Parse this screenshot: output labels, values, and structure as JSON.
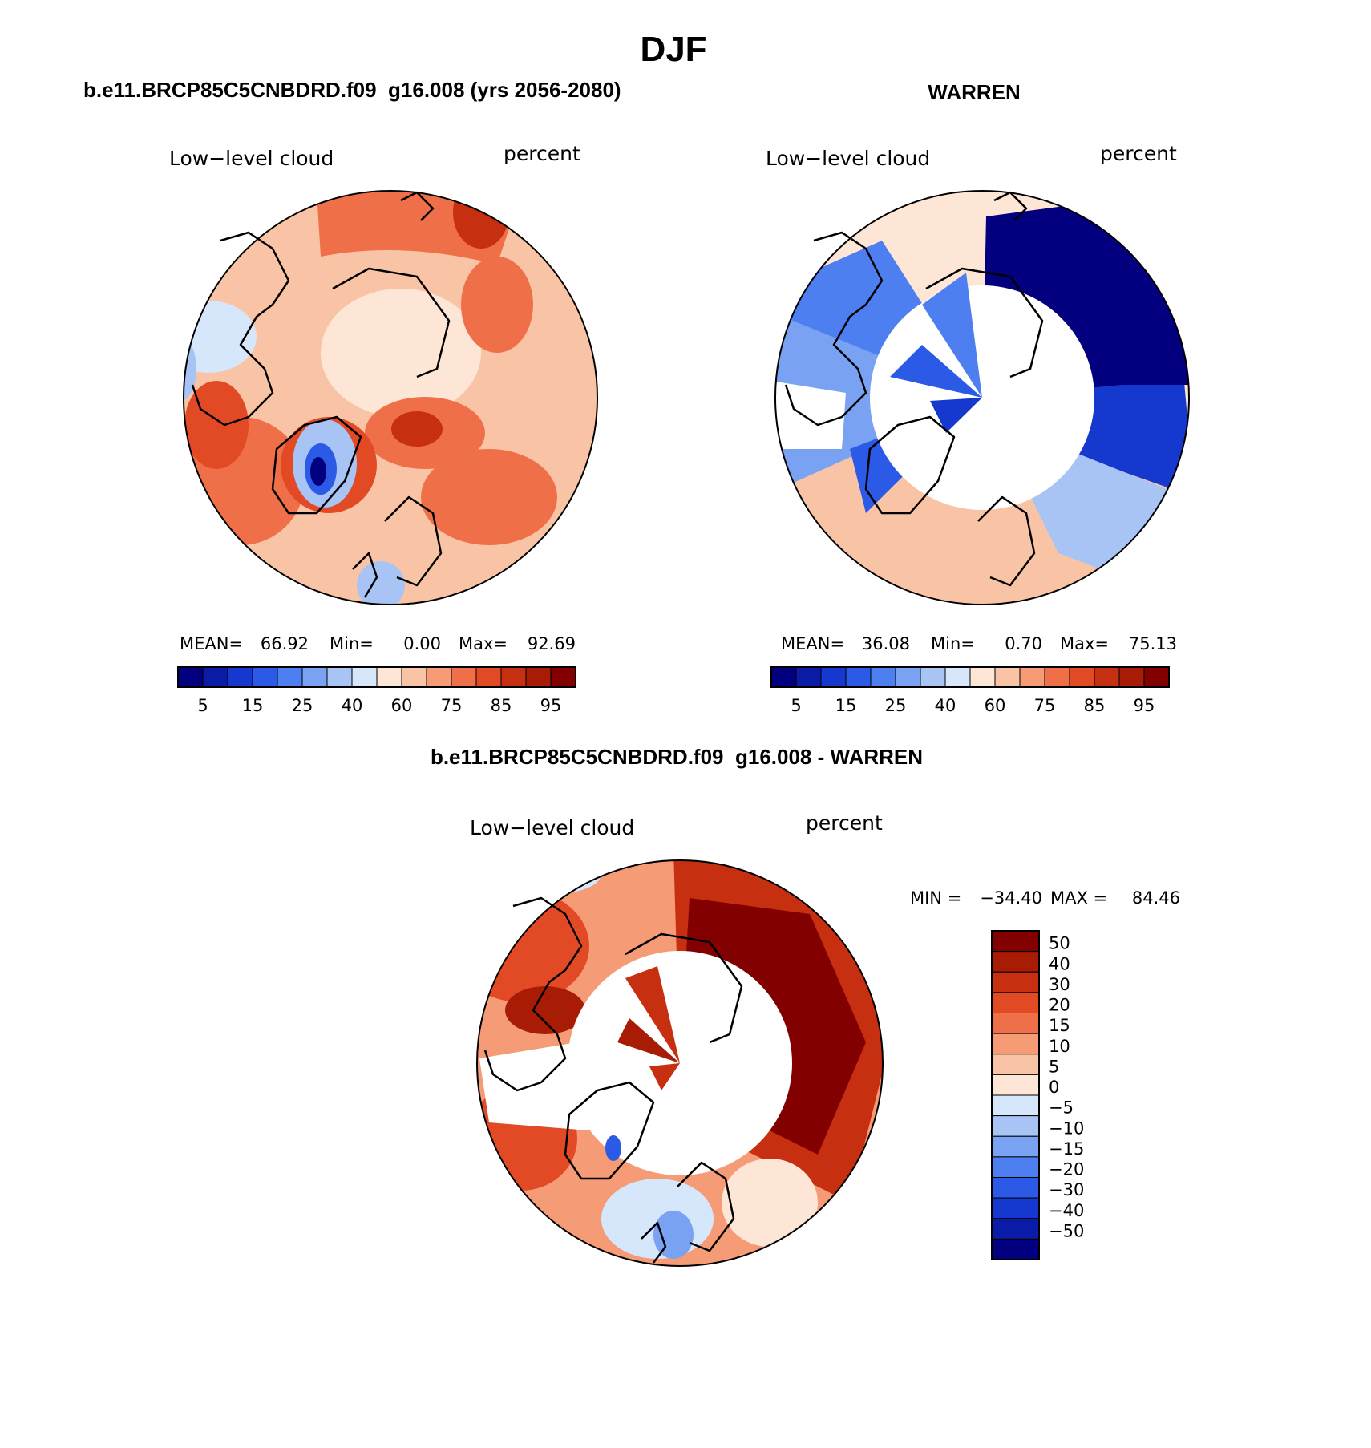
{
  "figure": {
    "season": "DJF",
    "left_title": "b.e11.BRCP85C5CNBDRD.f09_g16.008 (yrs 2056-2080)",
    "right_title": "WARREN",
    "diff_title": "b.e11.BRCP85C5CNBDRD.f09_g16.008 - WARREN"
  },
  "chart_data": [
    {
      "type": "heatmap",
      "projection": "north polar stereographic",
      "variable": "Low−level cloud",
      "units": "percent",
      "stats": {
        "mean_label": "MEAN=",
        "mean": "66.92",
        "min_label": "Min=",
        "min": "0.00",
        "max_label": "Max=",
        "max": "92.69"
      },
      "colorbar": {
        "orientation": "horizontal",
        "levels": [
          5,
          10,
          15,
          20,
          25,
          30,
          40,
          50,
          60,
          70,
          75,
          80,
          85,
          90,
          95
        ],
        "tick_labels": [
          "5",
          "15",
          "25",
          "40",
          "60",
          "75",
          "85",
          "95"
        ],
        "colors": [
          "#03007f",
          "#0a1ba8",
          "#1538cf",
          "#2a5ae6",
          "#4e7ff0",
          "#7aa2f3",
          "#a8c4f5",
          "#d6e7fb",
          "#fde6d6",
          "#f9c4a6",
          "#f59b75",
          "#ef7048",
          "#e24a25",
          "#c62f10",
          "#a81c05",
          "#820000"
        ]
      }
    },
    {
      "type": "heatmap",
      "projection": "north polar stereographic",
      "variable": "Low−level cloud",
      "units": "percent",
      "stats": {
        "mean_label": "MEAN=",
        "mean": "36.08",
        "min_label": "Min=",
        "min": "0.70",
        "max_label": "Max=",
        "max": "75.13"
      },
      "colorbar": {
        "orientation": "horizontal",
        "levels": [
          5,
          10,
          15,
          20,
          25,
          30,
          40,
          50,
          60,
          70,
          75,
          80,
          85,
          90,
          95
        ],
        "tick_labels": [
          "5",
          "15",
          "25",
          "40",
          "60",
          "75",
          "85",
          "95"
        ],
        "colors": [
          "#03007f",
          "#0a1ba8",
          "#1538cf",
          "#2a5ae6",
          "#4e7ff0",
          "#7aa2f3",
          "#a8c4f5",
          "#d6e7fb",
          "#fde6d6",
          "#f9c4a6",
          "#f59b75",
          "#ef7048",
          "#e24a25",
          "#c62f10",
          "#a81c05",
          "#820000"
        ]
      }
    },
    {
      "type": "heatmap",
      "projection": "north polar stereographic",
      "variable": "Low−level cloud",
      "units": "percent",
      "stats": {
        "min_label": "MIN =",
        "min": "−34.40",
        "max_label": "MAX =",
        "max": "84.46"
      },
      "colorbar": {
        "orientation": "vertical",
        "levels": [
          50,
          40,
          30,
          20,
          15,
          10,
          5,
          0,
          -5,
          -10,
          -15,
          -20,
          -30,
          -40,
          -50
        ],
        "tick_labels": [
          "50",
          "40",
          "30",
          "20",
          "15",
          "10",
          "5",
          "0",
          "−5",
          "−10",
          "−15",
          "−20",
          "−30",
          "−40",
          "−50"
        ],
        "colors": [
          "#820000",
          "#a81c05",
          "#c62f10",
          "#e24a25",
          "#ef7048",
          "#f59b75",
          "#f9c4a6",
          "#fde6d6",
          "#d6e7fb",
          "#a8c4f5",
          "#7aa2f3",
          "#4e7ff0",
          "#2a5ae6",
          "#1538cf",
          "#0a1ba8",
          "#03007f"
        ]
      }
    }
  ]
}
